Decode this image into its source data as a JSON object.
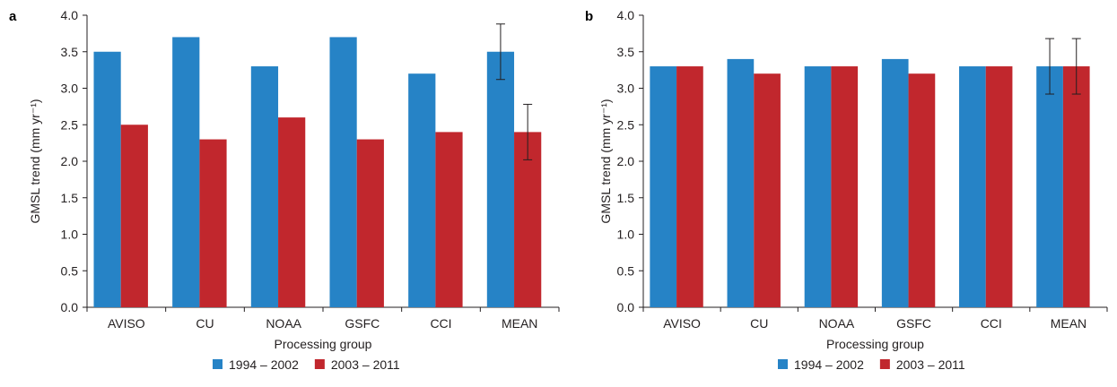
{
  "colors": {
    "series1": "#2683c6",
    "series2": "#c1272d",
    "ink": "#231f20"
  },
  "chart_data": [
    {
      "type": "bar",
      "panel_label": "a",
      "categories": [
        "AVISO",
        "CU",
        "NOAA",
        "GSFC",
        "CCI",
        "MEAN"
      ],
      "series": [
        {
          "name": "1994 – 2002",
          "values": [
            3.5,
            3.7,
            3.3,
            3.7,
            3.2,
            3.5
          ],
          "error": [
            null,
            null,
            null,
            null,
            null,
            0.38
          ]
        },
        {
          "name": "2003 – 2011",
          "values": [
            2.5,
            2.3,
            2.6,
            2.3,
            2.4,
            2.4
          ],
          "error": [
            null,
            null,
            null,
            null,
            null,
            0.38
          ]
        }
      ],
      "xlabel": "Processing group",
      "ylabel": "GMSL trend (mm yr⁻¹)",
      "ylim": [
        0,
        4.0
      ],
      "yticks": [
        "0.0",
        "0.5",
        "1.0",
        "1.5",
        "2.0",
        "2.5",
        "3.0",
        "3.5",
        "4.0"
      ],
      "legend_position": "bottom-center",
      "grid": false
    },
    {
      "type": "bar",
      "panel_label": "b",
      "categories": [
        "AVISO",
        "CU",
        "NOAA",
        "GSFC",
        "CCI",
        "MEAN"
      ],
      "series": [
        {
          "name": "1994 – 2002",
          "values": [
            3.3,
            3.4,
            3.3,
            3.4,
            3.3,
            3.3
          ],
          "error": [
            null,
            null,
            null,
            null,
            null,
            0.38
          ]
        },
        {
          "name": "2003 – 2011",
          "values": [
            3.3,
            3.2,
            3.3,
            3.2,
            3.3,
            3.3
          ],
          "error": [
            null,
            null,
            null,
            null,
            null,
            0.38
          ]
        }
      ],
      "xlabel": "Processing group",
      "ylabel": "GMSL trend (mm yr⁻¹)",
      "ylim": [
        0,
        4.0
      ],
      "yticks": [
        "0.0",
        "0.5",
        "1.0",
        "1.5",
        "2.0",
        "2.5",
        "3.0",
        "3.5",
        "4.0"
      ],
      "legend_position": "bottom-center",
      "grid": false
    }
  ]
}
